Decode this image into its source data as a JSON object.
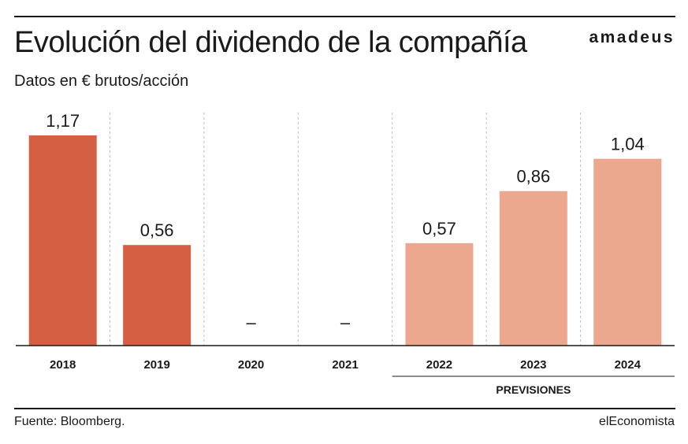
{
  "header": {
    "title": "Evolución del dividendo de la compañía",
    "subtitle": "Datos en € brutos/acción",
    "brand": "amadeus"
  },
  "footer": {
    "source": "Fuente: Bloomberg.",
    "publisher": "elEconomista"
  },
  "colors": {
    "actual": "#d45f42",
    "forecast": "#eca88e",
    "text": "#1a1a1a",
    "grid": "#bdbdbd"
  },
  "chart_data": {
    "type": "bar",
    "categories": [
      "2018",
      "2019",
      "2020",
      "2021",
      "2022",
      "2023",
      "2024"
    ],
    "values": [
      1.17,
      0.56,
      null,
      null,
      0.57,
      0.86,
      1.04
    ],
    "labels": [
      "1,17",
      "0,56",
      "–",
      "–",
      "0,57",
      "0,86",
      "1,04"
    ],
    "forecast": [
      false,
      false,
      false,
      false,
      true,
      true,
      true
    ],
    "forecast_label": "PREVISIONES",
    "ylim": [
      0,
      1.17
    ],
    "grid": "vertical dashed separators"
  }
}
